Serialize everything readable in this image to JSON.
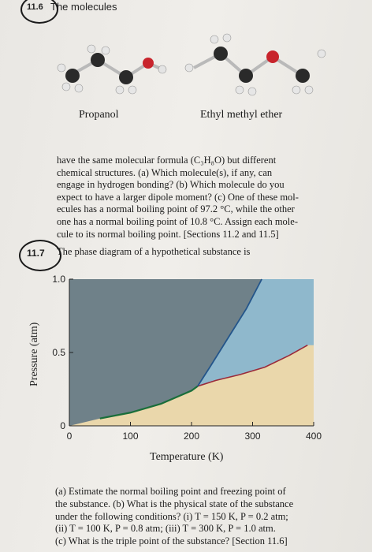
{
  "problem_1": {
    "number": "11.6",
    "lead_in": "The molecules"
  },
  "molecules": [
    {
      "name": "Propanol"
    },
    {
      "name": "Ethyl methyl ether"
    }
  ],
  "paragraph_1": {
    "lines": [
      "have the same molecular formula (C₃H₈O) but different",
      "chemical structures. (a) Which molecule(s), if any, can",
      "engage in hydrogen bonding? (b) Which molecule do you",
      "expect to have a larger dipole moment? (c) One of these mol-",
      "ecules has a normal boiling point of 97.2 °C, while the other",
      "one has a normal boiling point of 10.8 °C. Assign each mole-",
      "cule to its normal boiling point. [Sections 11.2 and 11.5]"
    ]
  },
  "problem_2": {
    "number": "11.7",
    "lead_in": "The phase diagram of a hypothetical substance is"
  },
  "chart_data": {
    "type": "area",
    "title": "",
    "xlabel": "Temperature (K)",
    "ylabel": "Pressure (atm)",
    "xlim": [
      0,
      400
    ],
    "ylim": [
      0,
      1.0
    ],
    "x_ticks": [
      "0",
      "100",
      "200",
      "300",
      "400"
    ],
    "y_ticks": [
      "0",
      "0.5",
      "1.0"
    ],
    "series": [
      {
        "values": [
          [
            50,
            0.05
          ],
          [
            100,
            0.09
          ],
          [
            150,
            0.15
          ],
          [
            200,
            0.24
          ],
          [
            210,
            0.27
          ]
        ]
      },
      {
        "values": [
          [
            210,
            0.27
          ],
          [
            240,
            0.31
          ],
          [
            280,
            0.35
          ],
          [
            320,
            0.4
          ],
          [
            360,
            0.48
          ],
          [
            390,
            0.55
          ]
        ]
      },
      {
        "values": [
          [
            210,
            0.27
          ],
          [
            230,
            0.4
          ],
          [
            260,
            0.6
          ],
          [
            290,
            0.8
          ],
          [
            315,
            1.0
          ]
        ]
      }
    ],
    "region_colors": {
      "solid": "#6f8189",
      "liquid": "#8fb8cc",
      "gas": "#ead7ab",
      "curves": "#1a6e3a",
      "vaporization_curve": "#9a2a3a",
      "fusion_curve": "#24558a"
    },
    "grid": false
  },
  "paragraph_2": {
    "lines": [
      "(a) Estimate the normal boiling point and freezing point of",
      "the substance. (b) What is the physical state of the substance",
      "under the following conditions? (i) T = 150 K, P = 0.2 atm;",
      "(ii) T = 100 K, P = 0.8 atm; (iii) T = 300 K, P = 1.0 atm.",
      "(c) What is the triple point of the substance? [Section 11.6]"
    ]
  }
}
